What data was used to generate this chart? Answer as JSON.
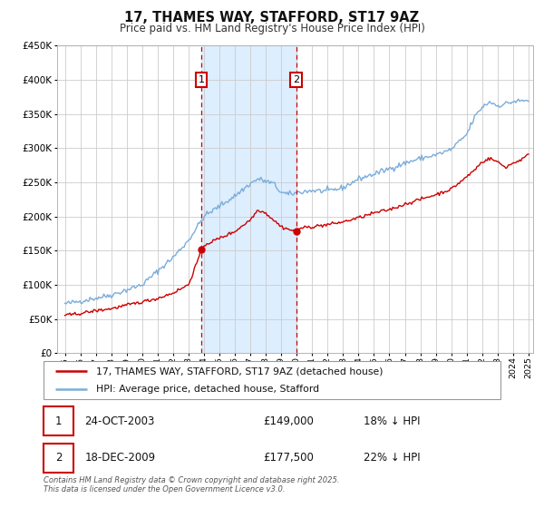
{
  "title": "17, THAMES WAY, STAFFORD, ST17 9AZ",
  "subtitle": "Price paid vs. HM Land Registry's House Price Index (HPI)",
  "background_color": "#ffffff",
  "plot_bg_color": "#ffffff",
  "grid_color": "#cccccc",
  "hpi_color": "#7aaddb",
  "price_color": "#cc0000",
  "highlight_fill": "#ddeeff",
  "dashed_line_color": "#cc0000",
  "ylim": [
    0,
    450000
  ],
  "ytick_step": 50000,
  "year_start": 1995,
  "year_end": 2025,
  "transaction1": {
    "date": "24-OCT-2003",
    "price": 149000,
    "price_str": "£149,000",
    "hpi_pct": "18% ↓ HPI",
    "label": "1",
    "year": 2003.82
  },
  "transaction2": {
    "date": "18-DEC-2009",
    "price": 177500,
    "price_str": "£177,500",
    "hpi_pct": "22% ↓ HPI",
    "label": "2",
    "year": 2009.96
  },
  "legend_entries": [
    "17, THAMES WAY, STAFFORD, ST17 9AZ (detached house)",
    "HPI: Average price, detached house, Stafford"
  ],
  "footnote_line1": "Contains HM Land Registry data © Crown copyright and database right 2025.",
  "footnote_line2": "This data is licensed under the Open Government Licence v3.0."
}
